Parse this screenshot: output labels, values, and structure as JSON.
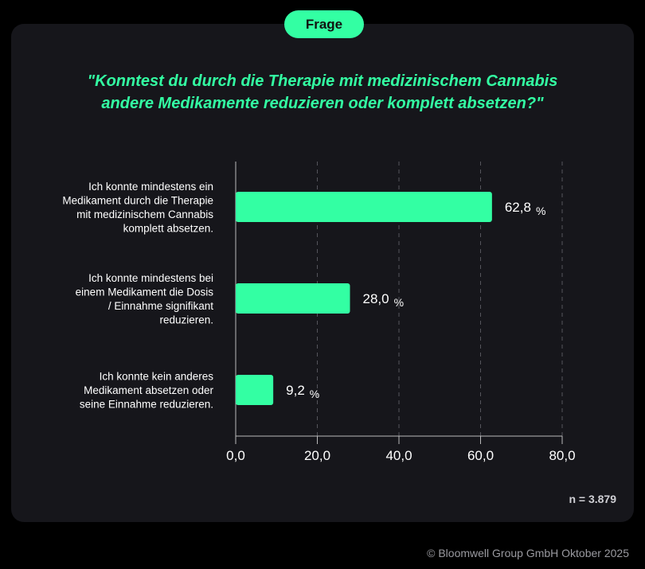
{
  "badge": "Frage",
  "title_line1": "\"Konntest du durch die Therapie mit medizinischem Cannabis",
  "title_line2": "andere Medikamente reduzieren oder komplett absetzen?\"",
  "sample": "n = 3.879",
  "copyright": "© Bloomwell Group GmbH Oktober 2025",
  "chart_data": {
    "type": "bar",
    "orientation": "horizontal",
    "categories": [
      [
        "Ich konnte mindestens ein",
        "Medikament durch die Therapie",
        "mit medizinischem Cannabis",
        "komplett absetzen."
      ],
      [
        "Ich konnte mindestens bei",
        "einem Medikament die Dosis",
        "/ Einnahme signifikant",
        "reduzieren."
      ],
      [
        "Ich konnte kein anderes",
        "Medikament absetzen oder",
        "seine Einnahme reduzieren."
      ]
    ],
    "values": [
      62.8,
      28.0,
      9.2
    ],
    "value_labels": [
      "62,8",
      "28,0",
      "9,2"
    ],
    "unit": "%",
    "xlim": [
      0,
      80
    ],
    "ticks": [
      0,
      20,
      40,
      60,
      80
    ],
    "tick_labels": [
      "0,0",
      "20,0",
      "40,0",
      "60,0",
      "80,0"
    ],
    "grid": "vertical dashed",
    "bar_color": "#33ffa3"
  }
}
